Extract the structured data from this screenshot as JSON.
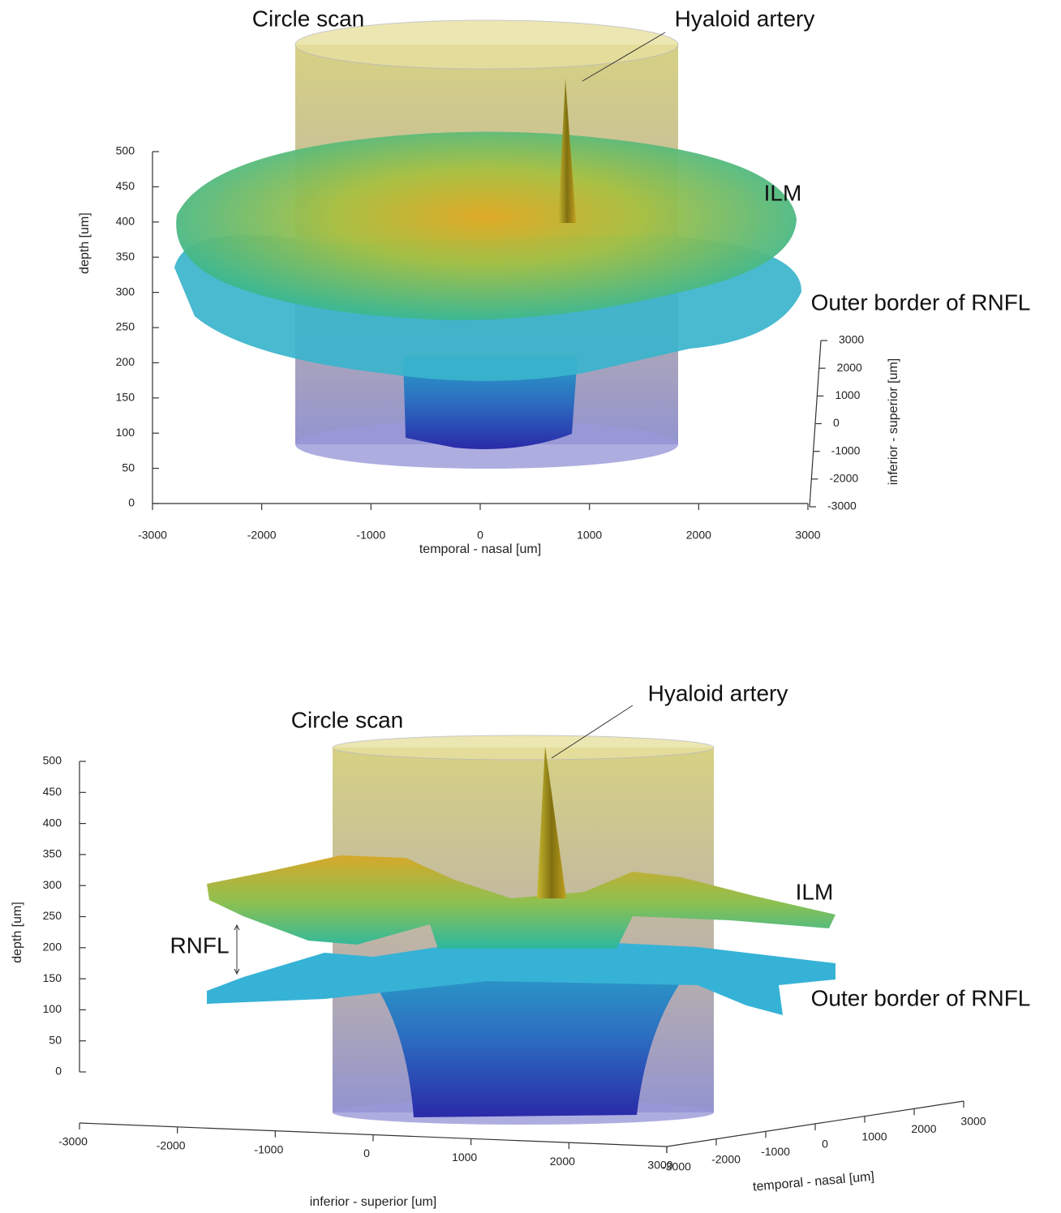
{
  "chart_data": [
    {
      "type": "surface3d",
      "zlabel": "depth [um]",
      "xlabel": "temporal - nasal [um]",
      "ylabel": "inferior - superior [um]",
      "zlim": [
        0,
        500
      ],
      "zticks": [
        0,
        50,
        100,
        150,
        200,
        250,
        300,
        350,
        400,
        450,
        500
      ],
      "xlim": [
        -3000,
        3000
      ],
      "xticks": [
        -3000,
        -2000,
        -1000,
        0,
        1000,
        2000,
        3000
      ],
      "ylim": [
        -3000,
        3000
      ],
      "yticks": [
        -3000,
        -2000,
        -1000,
        0,
        1000,
        2000,
        3000
      ],
      "annotations": [
        "Circle scan",
        "Hyaloid artery",
        "ILM",
        "Outer border of RNFL"
      ]
    },
    {
      "type": "surface3d",
      "zlabel": "depth [um]",
      "xlabel": "inferior - superior [um]",
      "ylabel": "temporal - nasal [um]",
      "zlim": [
        0,
        500
      ],
      "zticks": [
        0,
        50,
        100,
        150,
        200,
        250,
        300,
        350,
        400,
        450,
        500
      ],
      "xlim": [
        -3000,
        3000
      ],
      "xticks": [
        -3000,
        -2000,
        -1000,
        0,
        1000,
        2000,
        3000
      ],
      "ylim": [
        -3000,
        3000
      ],
      "yticks": [
        -3000,
        -2000,
        -1000,
        0,
        1000,
        2000,
        3000
      ],
      "annotations": [
        "Hyaloid artery",
        "Circle scan",
        "ILM",
        "RNFL",
        "Outer border of RNFL"
      ]
    }
  ]
}
